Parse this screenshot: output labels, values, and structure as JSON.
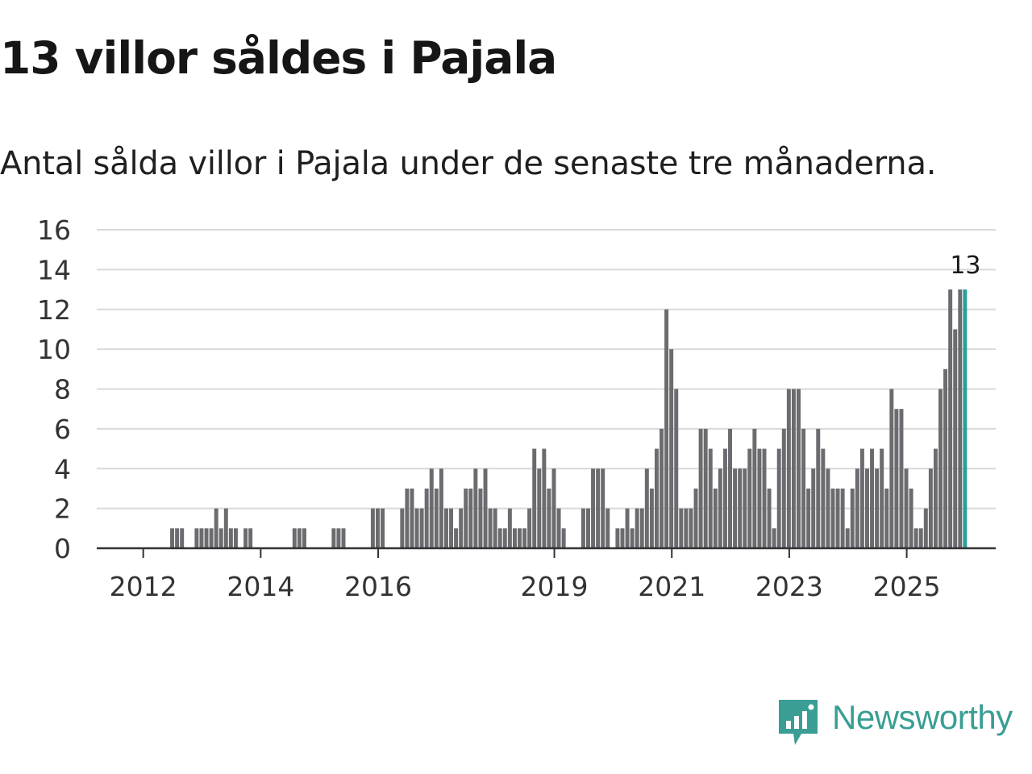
{
  "title": "13 villor såldes i Pajala",
  "subtitle": "Antal sålda villor i Pajala under de senaste tre månaderna.",
  "brand": "Newsworthy",
  "colors": {
    "bar": "#6b6b70",
    "highlight": "#2aa198",
    "grid": "#d9d9d9",
    "axis": "#333333",
    "brand": "#3a9e94"
  },
  "chart_data": {
    "type": "bar",
    "title": "13 villor såldes i Pajala",
    "ylabel": "",
    "xlabel": "",
    "ylim": [
      0,
      16
    ],
    "yticks": [
      0,
      2,
      4,
      6,
      8,
      10,
      12,
      14,
      16
    ],
    "xticks": [
      "2012",
      "2014",
      "2016",
      "2019",
      "2021",
      "2023",
      "2025"
    ],
    "x_start": "2011-04",
    "highlight_label": "13",
    "values": [
      0,
      0,
      0,
      0,
      0,
      0,
      0,
      0,
      0,
      0,
      0,
      0,
      0,
      0,
      0,
      1,
      1,
      1,
      0,
      0,
      1,
      1,
      1,
      1,
      2,
      1,
      2,
      1,
      1,
      0,
      1,
      1,
      0,
      0,
      0,
      0,
      0,
      0,
      0,
      0,
      1,
      1,
      1,
      0,
      0,
      0,
      0,
      0,
      1,
      1,
      1,
      0,
      0,
      0,
      0,
      0,
      2,
      2,
      2,
      0,
      0,
      0,
      2,
      3,
      3,
      2,
      2,
      3,
      4,
      3,
      4,
      2,
      2,
      1,
      2,
      3,
      3,
      4,
      3,
      4,
      2,
      2,
      1,
      1,
      2,
      1,
      1,
      1,
      2,
      5,
      4,
      5,
      3,
      4,
      2,
      1,
      0,
      0,
      0,
      2,
      2,
      4,
      4,
      4,
      2,
      0,
      1,
      1,
      2,
      1,
      2,
      2,
      4,
      3,
      5,
      6,
      12,
      10,
      8,
      2,
      2,
      2,
      3,
      6,
      6,
      5,
      3,
      4,
      5,
      6,
      4,
      4,
      4,
      5,
      6,
      5,
      5,
      3,
      1,
      5,
      6,
      8,
      8,
      8,
      6,
      3,
      4,
      6,
      5,
      4,
      3,
      3,
      3,
      1,
      3,
      4,
      5,
      4,
      5,
      4,
      5,
      3,
      8,
      7,
      7,
      4,
      3,
      1,
      1,
      2,
      4,
      5,
      8,
      9,
      13,
      11,
      13,
      13
    ]
  }
}
